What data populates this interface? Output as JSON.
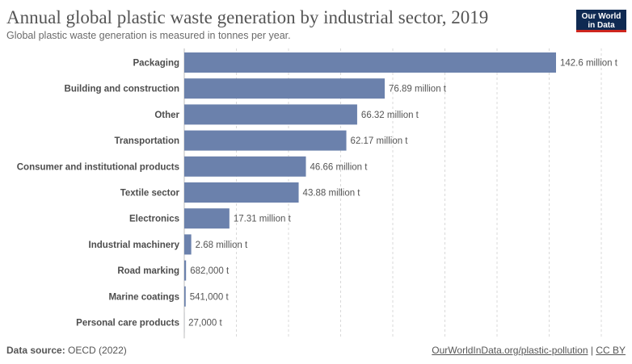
{
  "header": {
    "title": "Annual global plastic waste generation by industrial sector, 2019",
    "subtitle": "Global plastic waste generation is measured in tonnes per year."
  },
  "logo": {
    "line1": "Our World",
    "line2": "in Data"
  },
  "footer": {
    "source_label": "Data source:",
    "source_value": "OECD (2022)",
    "link": "OurWorldInData.org/plastic-pollution",
    "separator": "|",
    "license": "CC BY"
  },
  "colors": {
    "bar": "#6b81ac",
    "title": "#555555",
    "grid": "#d9d9d9"
  },
  "chart_data": {
    "type": "bar",
    "orientation": "horizontal",
    "unit": "tonnes",
    "categories": [
      "Packaging",
      "Building and construction",
      "Other",
      "Transportation",
      "Consumer and institutional products",
      "Textile sector",
      "Electronics",
      "Industrial machinery",
      "Road marking",
      "Marine coatings",
      "Personal care products"
    ],
    "values": [
      142600000,
      76890000,
      66320000,
      62170000,
      46660000,
      43880000,
      17310000,
      2680000,
      682000,
      541000,
      27000
    ],
    "value_labels": [
      "142.6 million t",
      "76.89 million t",
      "66.32 million t",
      "62.17 million t",
      "46.66 million t",
      "43.88 million t",
      "17.31 million t",
      "2.68 million t",
      "682,000 t",
      "541,000 t",
      "27,000 t"
    ],
    "xlim": [
      0,
      142600000
    ],
    "grid": "vertical dashed",
    "legend": "none"
  }
}
